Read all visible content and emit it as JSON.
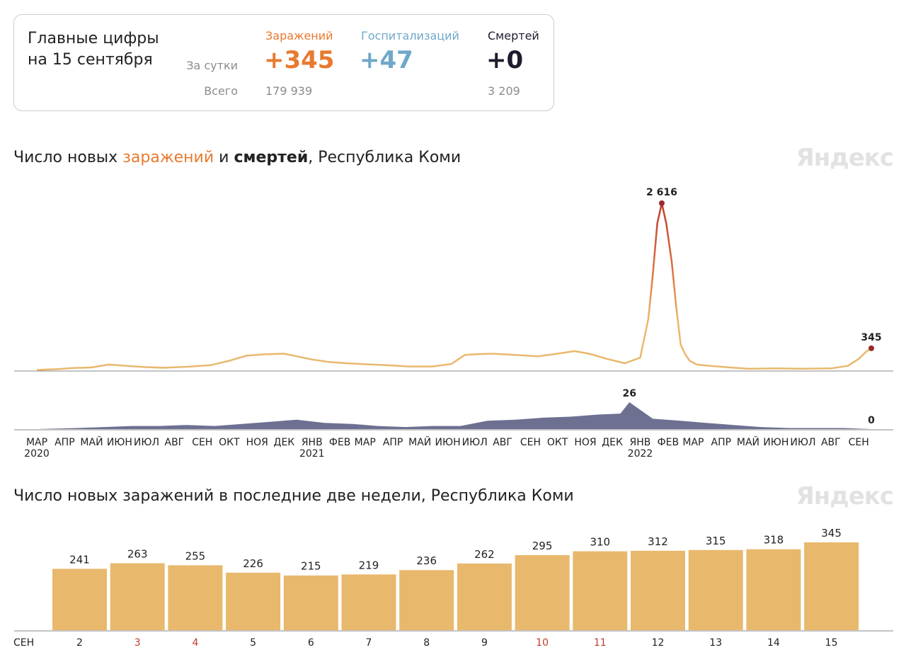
{
  "summary": {
    "title_line1": "Главные цифры",
    "title_line2": "на 15 сентября",
    "row_daily": "За сутки",
    "row_total": "Всего",
    "infections": {
      "label": "Заражений",
      "daily": "+345",
      "total": "179 939",
      "color": "#e87a30"
    },
    "hospitalizations": {
      "label": "Госпитализаций",
      "daily": "+47",
      "color": "#6fa8c9"
    },
    "deaths": {
      "label": "Смертей",
      "daily": "+0",
      "total": "3 209",
      "color": "#1d1d2e"
    }
  },
  "charts": {
    "main_title": {
      "part1": "Число новых ",
      "part2": "заражений",
      "part3": " и ",
      "part4": "смертей",
      "part5": ", Республика Коми"
    },
    "bars_title": "Число новых заражений в последние две недели, Республика Коми",
    "watermark": "Яндекс"
  },
  "chart_data": [
    {
      "type": "area",
      "series": [
        {
          "name": "Заражений",
          "color": "#e8b86d",
          "peak_color": "#c0392b",
          "x": [
            "2020-03-01",
            "2020-03-25",
            "2020-04-10",
            "2020-05-01",
            "2020-05-20",
            "2020-06-10",
            "2020-06-30",
            "2020-07-20",
            "2020-08-15",
            "2020-09-10",
            "2020-10-01",
            "2020-10-20",
            "2020-11-10",
            "2020-12-01",
            "2020-12-15",
            "2021-01-01",
            "2021-01-20",
            "2021-02-10",
            "2021-03-01",
            "2021-03-25",
            "2021-04-20",
            "2021-05-15",
            "2021-06-05",
            "2021-06-20",
            "2021-07-01",
            "2021-07-20",
            "2021-08-15",
            "2021-09-10",
            "2021-10-01",
            "2021-10-20",
            "2021-11-05",
            "2021-11-25",
            "2021-12-15",
            "2022-01-01",
            "2022-01-10",
            "2022-01-15",
            "2022-01-20",
            "2022-01-25",
            "2022-01-30",
            "2022-02-05",
            "2022-02-10",
            "2022-02-15",
            "2022-02-20",
            "2022-02-25",
            "2022-03-05",
            "2022-03-20",
            "2022-04-10",
            "2022-05-01",
            "2022-06-01",
            "2022-07-01",
            "2022-08-01",
            "2022-08-20",
            "2022-09-01",
            "2022-09-10",
            "2022-09-15"
          ],
          "values": [
            5,
            20,
            35,
            45,
            90,
            70,
            50,
            40,
            55,
            80,
            150,
            230,
            250,
            260,
            220,
            170,
            130,
            110,
            95,
            80,
            60,
            60,
            100,
            240,
            250,
            260,
            240,
            220,
            260,
            300,
            260,
            180,
            110,
            200,
            800,
            1500,
            2300,
            2616,
            2300,
            1700,
            1000,
            400,
            250,
            150,
            90,
            70,
            45,
            25,
            30,
            25,
            30,
            70,
            180,
            300,
            345
          ],
          "annotations": [
            {
              "x": "2022-01-25",
              "label": "2 616"
            },
            {
              "x": "2022-09-15",
              "label": "345"
            }
          ]
        },
        {
          "name": "Смертей",
          "color": "#5d6185",
          "x": [
            "2020-03-01",
            "2020-04-15",
            "2020-05-15",
            "2020-06-15",
            "2020-07-15",
            "2020-08-15",
            "2020-09-15",
            "2020-10-15",
            "2020-11-15",
            "2020-12-15",
            "2021-01-15",
            "2021-02-15",
            "2021-03-15",
            "2021-04-15",
            "2021-05-15",
            "2021-06-15",
            "2021-07-15",
            "2021-08-15",
            "2021-09-15",
            "2021-10-15",
            "2021-11-15",
            "2021-12-10",
            "2021-12-20",
            "2022-01-15",
            "2022-02-15",
            "2022-03-15",
            "2022-04-15",
            "2022-05-15",
            "2022-06-15",
            "2022-07-15",
            "2022-08-15",
            "2022-09-15"
          ],
          "values": [
            0,
            1,
            2,
            3,
            3,
            4,
            3,
            5,
            7,
            9,
            6,
            5,
            3,
            2,
            3,
            3,
            8,
            9,
            11,
            12,
            14,
            15,
            26,
            10,
            8,
            6,
            4,
            2,
            1,
            1,
            1,
            0
          ],
          "annotations": [
            {
              "x": "2021-12-20",
              "label": "26"
            },
            {
              "x": "2022-09-15",
              "label": "0"
            }
          ]
        }
      ],
      "x_ticks": [
        "МАР",
        "АПР",
        "МАЙ",
        "ИЮН",
        "ИЮЛ",
        "АВГ",
        "СЕН",
        "ОКТ",
        "НОЯ",
        "ДЕК",
        "ЯНВ",
        "ФЕВ",
        "МАР",
        "АПР",
        "МАЙ",
        "ИЮН",
        "ИЮЛ",
        "АВГ",
        "СЕН",
        "ОКТ",
        "НОЯ",
        "ДЕК",
        "ЯНВ",
        "ФЕВ",
        "МАР",
        "АПР",
        "МАЙ",
        "ИЮН",
        "ИЮЛ",
        "АВГ",
        "СЕН"
      ],
      "x_tick_dates": [
        "2020-03-01",
        "2020-04-01",
        "2020-05-01",
        "2020-06-01",
        "2020-07-01",
        "2020-08-01",
        "2020-09-01",
        "2020-10-01",
        "2020-11-01",
        "2020-12-01",
        "2021-01-01",
        "2021-02-01",
        "2021-03-01",
        "2021-04-01",
        "2021-05-01",
        "2021-06-01",
        "2021-07-01",
        "2021-08-01",
        "2021-09-01",
        "2021-10-01",
        "2021-11-01",
        "2021-12-01",
        "2022-01-01",
        "2022-02-01",
        "2022-03-01",
        "2022-04-01",
        "2022-05-01",
        "2022-06-01",
        "2022-07-01",
        "2022-08-01",
        "2022-09-01"
      ],
      "year_labels": [
        {
          "x": "2020-03-01",
          "label": "2020"
        },
        {
          "x": "2021-01-01",
          "label": "2021"
        },
        {
          "x": "2022-01-01",
          "label": "2022"
        }
      ]
    },
    {
      "type": "bar",
      "categories": [
        "2",
        "3",
        "4",
        "5",
        "6",
        "7",
        "8",
        "9",
        "10",
        "11",
        "12",
        "13",
        "14",
        "15"
      ],
      "values": [
        241,
        263,
        255,
        226,
        215,
        219,
        236,
        262,
        295,
        310,
        312,
        315,
        318,
        345
      ],
      "value_labels": [
        "241",
        "263",
        "255",
        "226",
        "215",
        "219",
        "236",
        "262",
        "295",
        "310",
        "312",
        "315",
        "318",
        "345"
      ],
      "weekend": [
        false,
        true,
        true,
        false,
        false,
        false,
        false,
        false,
        true,
        true,
        false,
        false,
        false,
        false
      ],
      "weekend_color": "#c0392b",
      "xlabel": "СЕН",
      "bar_color": "#e8b86d"
    }
  ]
}
